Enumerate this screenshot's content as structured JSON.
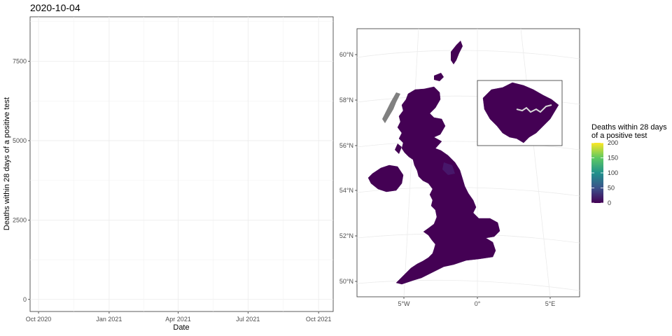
{
  "title": "2020-10-04",
  "chart_data": [
    {
      "type": "line",
      "title": "2020-10-04",
      "xlabel": "Date",
      "ylabel": "Deaths within 28 days of a positive test",
      "x_ticks": [
        "Oct 2020",
        "Jan 2021",
        "Apr 2021",
        "Jul 2021",
        "Oct 2021"
      ],
      "xlim": [
        "2020-09-20",
        "2021-10-20"
      ],
      "y_ticks": [
        0,
        2500,
        5000,
        7500
      ],
      "ylim": [
        -380,
        8900
      ],
      "grid": true,
      "series": []
    },
    {
      "type": "map",
      "lat_labels": [
        "50°N",
        "52°N",
        "54°N",
        "56°N",
        "58°N",
        "60°N"
      ],
      "lon_labels": [
        "5°W",
        "0°",
        "5°E"
      ],
      "inset": "London",
      "fill_colors": {
        "regions": "#440154",
        "no_data": "#808080",
        "river": "#d9d9d9"
      },
      "legend": {
        "title_line1": "Deaths within 28 days",
        "title_line2": "of a positive test",
        "ticks": [
          0,
          50,
          100,
          150,
          200
        ],
        "scale": "viridis",
        "range": [
          0,
          200
        ],
        "placement": "right"
      }
    }
  ]
}
